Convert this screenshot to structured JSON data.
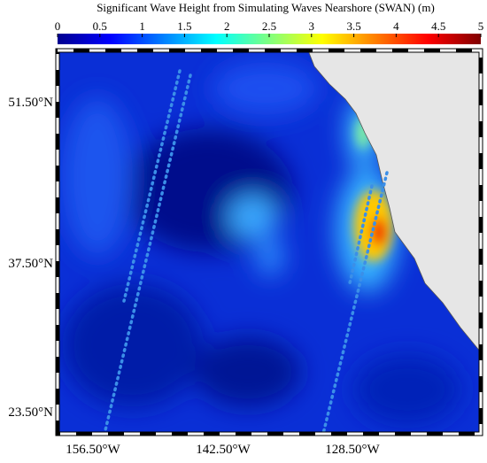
{
  "colorbar": {
    "title": "Significant Wave Height from Simulating Waves Nearshore (SWAN)  (m)",
    "range": [
      0,
      5
    ],
    "ticks": [
      0,
      0.5,
      1,
      1.5,
      2,
      2.5,
      3,
      3.5,
      4,
      4.5,
      5
    ]
  },
  "map": {
    "lat_labels": [
      "51.50°N",
      "37.50°N",
      "23.50°N"
    ],
    "lon_labels": [
      "156.50°W",
      "142.50°W",
      "128.50°W"
    ]
  }
}
